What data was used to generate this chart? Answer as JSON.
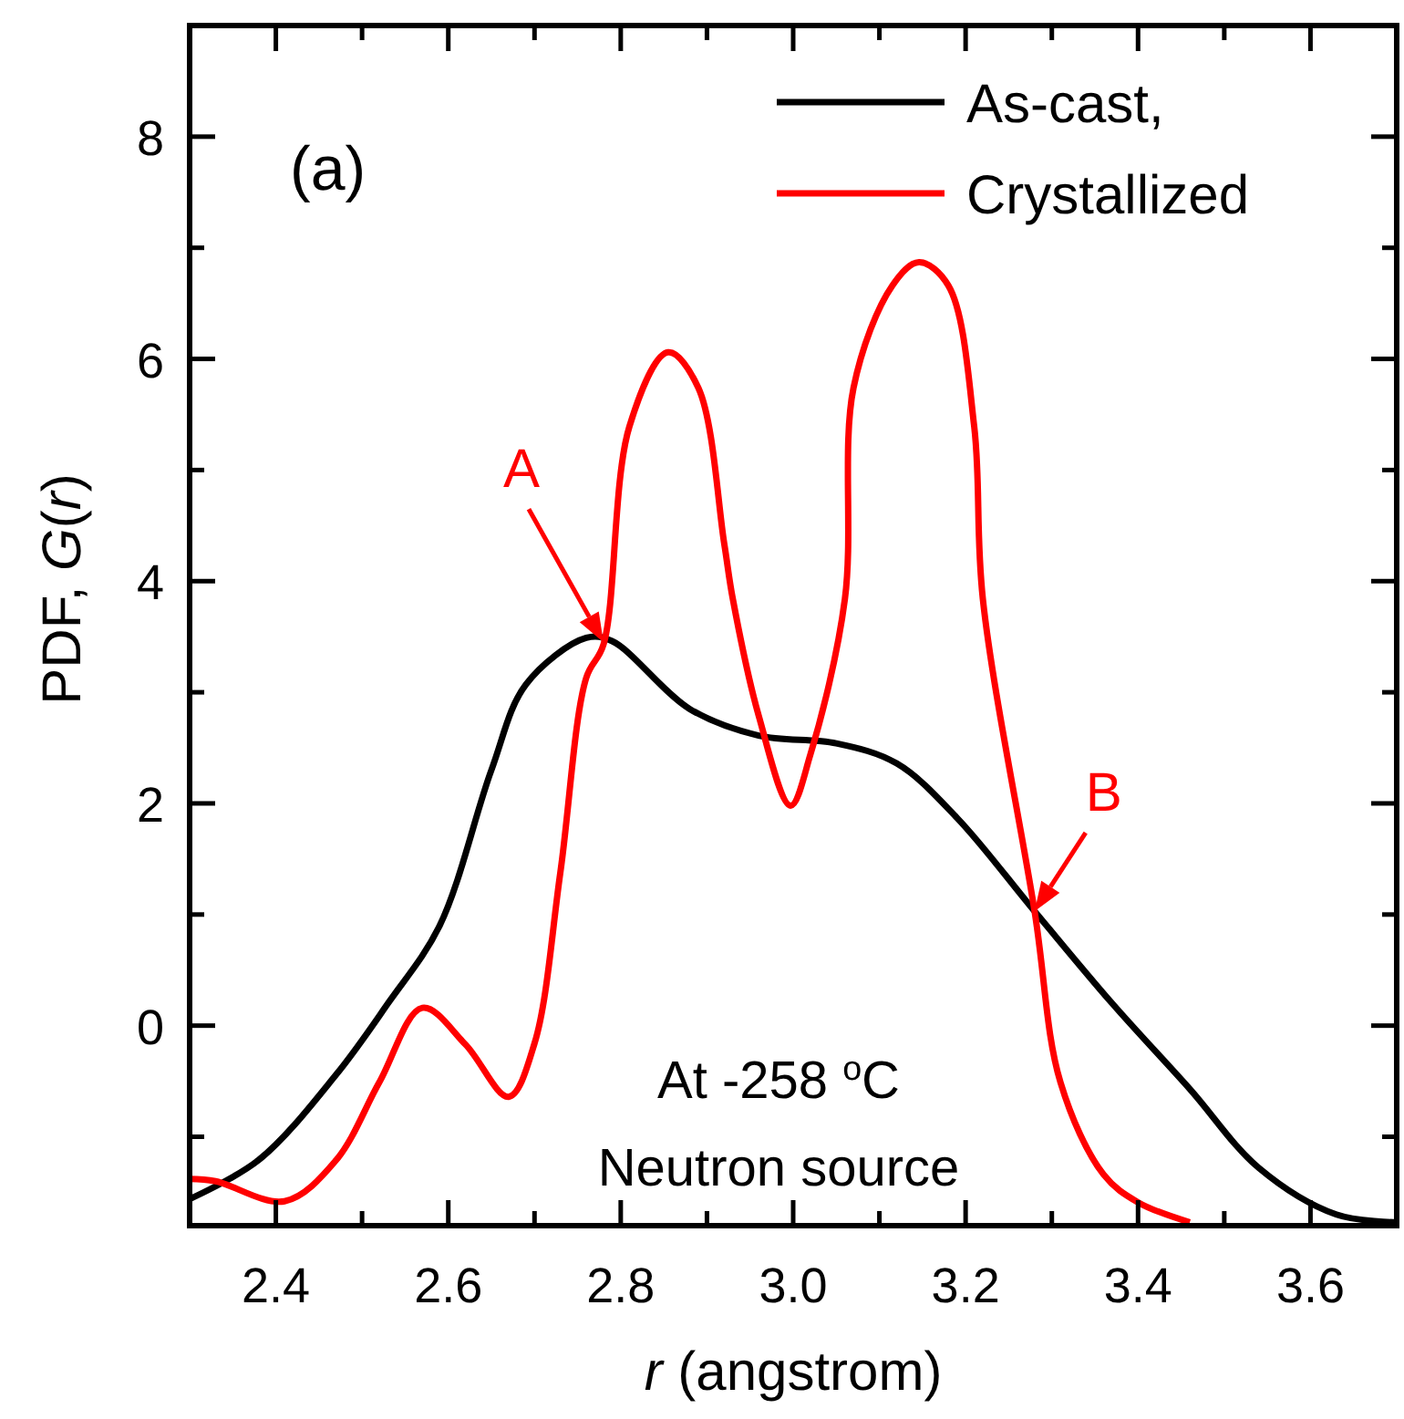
{
  "chart_data": {
    "type": "line",
    "xlabel": "r (angstrom)",
    "ylabel": "PDF, G(r)",
    "xlim": [
      2.3,
      3.7
    ],
    "ylim": [
      -1.8,
      9
    ],
    "xticks": [
      2.4,
      {
        "value": 2.5,
        "label": null
      },
      2.6,
      {
        "value": 2.7,
        "label": null
      },
      2.8,
      {
        "value": 2.9,
        "label": null
      },
      {
        "value": 3.0,
        "label": "3.0"
      },
      {
        "value": 3.1,
        "label": null
      },
      3.2,
      {
        "value": 3.3,
        "label": null
      },
      3.4,
      {
        "value": 3.5,
        "label": null
      },
      3.6
    ],
    "yticks": [
      {
        "value": -1,
        "label": null
      },
      0,
      {
        "value": 1,
        "label": null
      },
      2,
      {
        "value": 3,
        "label": null
      },
      4,
      {
        "value": 5,
        "label": null
      },
      6,
      {
        "value": 7,
        "label": null
      },
      8
    ],
    "grid": false,
    "legend": "top right",
    "line_style": "solid",
    "marker": "none",
    "series": [
      {
        "name": "As-cast,",
        "color": "#000000",
        "x": [
          2.3,
          2.38,
          2.47,
          2.53,
          2.59,
          2.65,
          2.69,
          2.76,
          2.79,
          2.88,
          2.96,
          3.05,
          3.12,
          3.19,
          3.28,
          3.37,
          3.46,
          3.54,
          3.63,
          3.7
        ],
        "values": [
          -1.56,
          -1.21,
          -0.44,
          0.2,
          0.9,
          2.3,
          3.07,
          3.49,
          3.46,
          2.85,
          2.61,
          2.54,
          2.36,
          1.87,
          1.03,
          0.2,
          -0.57,
          -1.28,
          -1.7,
          -1.77
        ]
      },
      {
        "name": "Crystallized",
        "color": "#ff0000",
        "x": [
          2.3,
          2.33,
          2.41,
          2.47,
          2.52,
          2.57,
          2.62,
          2.67,
          2.7,
          2.73,
          2.76,
          2.78,
          2.81,
          2.855,
          2.89,
          2.92,
          2.93,
          2.96,
          2.997,
          3.02,
          3.06,
          3.07,
          3.115,
          3.146,
          3.18,
          3.21,
          3.22,
          3.28,
          3.31,
          3.36,
          3.4,
          3.46
        ],
        "values": [
          -1.38,
          -1.4,
          -1.58,
          -1.21,
          -0.51,
          0.16,
          -0.17,
          -0.64,
          -0.16,
          1.38,
          3.13,
          3.43,
          5.39,
          6.06,
          5.74,
          4.34,
          3.84,
          2.79,
          1.98,
          2.44,
          3.84,
          5.74,
          6.66,
          6.87,
          6.66,
          5.39,
          3.84,
          1.03,
          -0.51,
          -1.34,
          -1.59,
          -1.77
        ]
      }
    ],
    "annotations": [
      "(a)",
      {
        "text": "A",
        "x": 2.78,
        "y": 3.45
      },
      {
        "text": "B",
        "x": 3.28,
        "y": 1.03
      },
      "At -258 $^{o}$C",
      "Neutron source"
    ]
  }
}
